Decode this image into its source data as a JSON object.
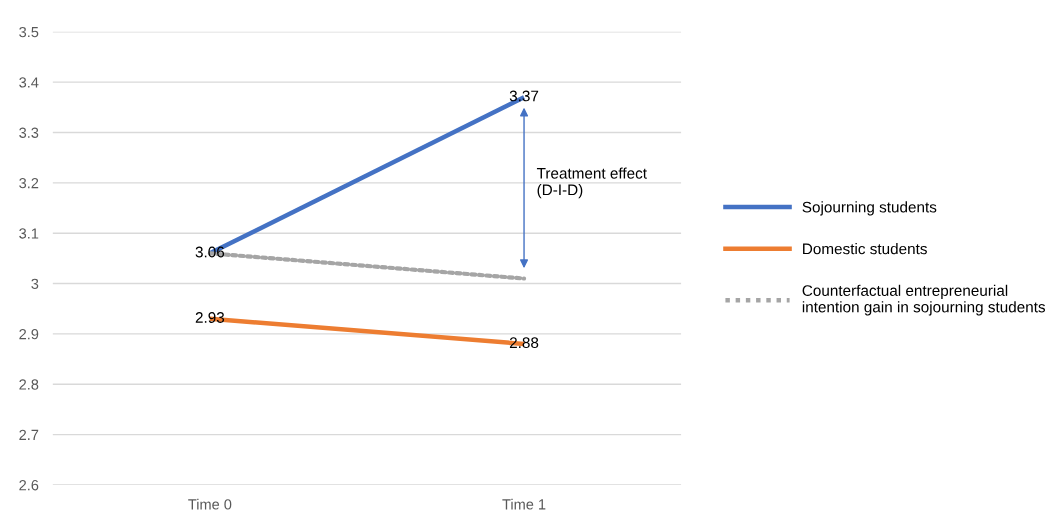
{
  "chart_data": {
    "type": "line",
    "categories": [
      "Time 0",
      "Time 1"
    ],
    "series": [
      {
        "name": "Sojourning students",
        "color": "#4472c4",
        "values": [
          3.06,
          3.37
        ],
        "value_labels": [
          "3.06",
          "3.37"
        ]
      },
      {
        "name": "Domestic students",
        "color": "#ed7d31",
        "values": [
          2.93,
          2.88
        ],
        "value_labels": [
          "2.93",
          "2.88"
        ]
      },
      {
        "name": "Counterfactual entrepreneurial intention gain in sojourning students",
        "color": "#a5a5a5",
        "values": [
          3.06,
          3.01
        ],
        "line_style": "dotted"
      }
    ],
    "ylim": [
      2.6,
      3.5
    ],
    "yticks": [
      {
        "value": 2.6,
        "label": "2.6"
      },
      {
        "value": 2.7,
        "label": "2.7"
      },
      {
        "value": 2.8,
        "label": "2.8"
      },
      {
        "value": 2.9,
        "label": "2.9"
      },
      {
        "value": 3.0,
        "label": "3"
      },
      {
        "value": 3.1,
        "label": "3.1"
      },
      {
        "value": 3.2,
        "label": "3.2"
      },
      {
        "value": 3.3,
        "label": "3.3"
      },
      {
        "value": 3.4,
        "label": "3.4"
      },
      {
        "value": 3.5,
        "label": "3.5"
      }
    ],
    "grid": "y",
    "legend": "right",
    "marker": "none",
    "annotations": [
      "Treatment effect\n(D-I-D)"
    ]
  }
}
